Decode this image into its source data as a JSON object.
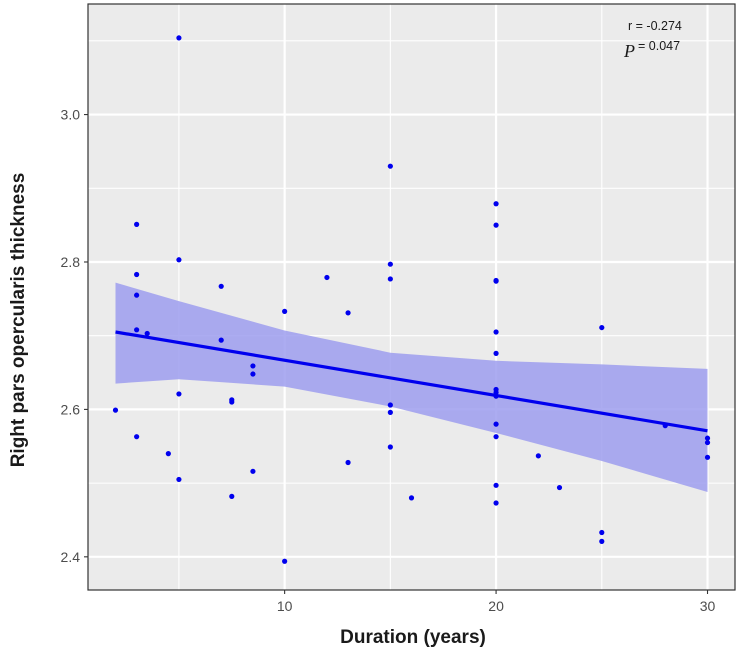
{
  "chart_data": {
    "type": "scatter",
    "title": "",
    "xlabel": "Duration (years)",
    "ylabel": "Right pars opercularis thickness",
    "xlim": [
      0.7,
      31.3
    ],
    "ylim": [
      2.355,
      3.15
    ],
    "x_ticks": [
      10,
      20,
      30
    ],
    "y_ticks": [
      2.4,
      2.6,
      2.8,
      3.0
    ],
    "x_tick_labels": [
      "10",
      "20",
      "30"
    ],
    "y_tick_labels": [
      "2.4",
      "2.6",
      "2.8",
      "3.0"
    ],
    "x_minor_ticks": [
      5,
      15,
      25
    ],
    "y_minor_ticks": [
      2.5,
      2.7,
      2.9,
      3.1
    ],
    "grid": true,
    "annotations": {
      "r_text": "r = -0.274",
      "p_symbol": "P",
      "p_text": "= 0.047"
    },
    "colors": {
      "points": "#0000ee",
      "fit_line": "#0000ee",
      "confidence_band": "#9e9eef",
      "panel_background": "#ebebeb",
      "grid": "#ffffff"
    },
    "points": [
      {
        "x": 2,
        "y": 2.599
      },
      {
        "x": 3,
        "y": 2.851
      },
      {
        "x": 3,
        "y": 2.783
      },
      {
        "x": 3,
        "y": 2.755
      },
      {
        "x": 3,
        "y": 2.708
      },
      {
        "x": 3,
        "y": 2.563
      },
      {
        "x": 3.5,
        "y": 2.703
      },
      {
        "x": 4.5,
        "y": 2.54
      },
      {
        "x": 5,
        "y": 3.104
      },
      {
        "x": 5,
        "y": 2.803
      },
      {
        "x": 5,
        "y": 2.621
      },
      {
        "x": 5,
        "y": 2.505
      },
      {
        "x": 7,
        "y": 2.767
      },
      {
        "x": 7,
        "y": 2.694
      },
      {
        "x": 7.5,
        "y": 2.613
      },
      {
        "x": 7.5,
        "y": 2.61
      },
      {
        "x": 7.5,
        "y": 2.482
      },
      {
        "x": 8.5,
        "y": 2.659
      },
      {
        "x": 8.5,
        "y": 2.648
      },
      {
        "x": 8.5,
        "y": 2.516
      },
      {
        "x": 10,
        "y": 2.733
      },
      {
        "x": 10,
        "y": 2.394
      },
      {
        "x": 12,
        "y": 2.779
      },
      {
        "x": 13,
        "y": 2.731
      },
      {
        "x": 13,
        "y": 2.528
      },
      {
        "x": 15,
        "y": 2.93
      },
      {
        "x": 15,
        "y": 2.797
      },
      {
        "x": 15,
        "y": 2.777
      },
      {
        "x": 15,
        "y": 2.606
      },
      {
        "x": 15,
        "y": 2.596
      },
      {
        "x": 15,
        "y": 2.549
      },
      {
        "x": 16,
        "y": 2.48
      },
      {
        "x": 20,
        "y": 2.879
      },
      {
        "x": 20,
        "y": 2.85
      },
      {
        "x": 20,
        "y": 2.775
      },
      {
        "x": 20,
        "y": 2.774
      },
      {
        "x": 20,
        "y": 2.705
      },
      {
        "x": 20,
        "y": 2.676
      },
      {
        "x": 20,
        "y": 2.627
      },
      {
        "x": 20,
        "y": 2.623
      },
      {
        "x": 20,
        "y": 2.618
      },
      {
        "x": 20,
        "y": 2.58
      },
      {
        "x": 20,
        "y": 2.563
      },
      {
        "x": 20,
        "y": 2.497
      },
      {
        "x": 20,
        "y": 2.473
      },
      {
        "x": 22,
        "y": 2.537
      },
      {
        "x": 23,
        "y": 2.494
      },
      {
        "x": 25,
        "y": 2.711
      },
      {
        "x": 25,
        "y": 2.433
      },
      {
        "x": 25,
        "y": 2.421
      },
      {
        "x": 28,
        "y": 2.578
      },
      {
        "x": 30,
        "y": 2.561
      },
      {
        "x": 30,
        "y": 2.555
      },
      {
        "x": 30,
        "y": 2.535
      }
    ],
    "fit_line": {
      "x": [
        2,
        30
      ],
      "y": [
        2.705,
        2.571
      ]
    },
    "confidence_band": {
      "x": [
        2,
        5,
        10,
        15,
        20,
        25,
        30
      ],
      "lower": [
        2.635,
        2.641,
        2.631,
        2.604,
        2.568,
        2.53,
        2.488
      ],
      "upper": [
        2.772,
        2.747,
        2.707,
        2.677,
        2.666,
        2.661,
        2.655
      ]
    }
  }
}
